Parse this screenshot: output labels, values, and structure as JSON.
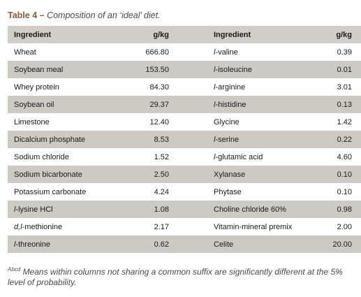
{
  "caption": {
    "label": "Table 4 –",
    "text": "Composition of an ‘ideal’ diet."
  },
  "table": {
    "headers": [
      "Ingredient",
      "g/kg",
      "Ingredient",
      "g/kg"
    ],
    "rows": [
      [
        "Wheat",
        "666.80",
        "l-valine",
        "0.39"
      ],
      [
        "Soybean meal",
        "153.50",
        "l-isoleucine",
        "0.01"
      ],
      [
        "Whey protein",
        "84.30",
        "l-arginine",
        "3.01"
      ],
      [
        "Soybean oil",
        "29.37",
        "l-histidine",
        "0.13"
      ],
      [
        "Limestone",
        "12.40",
        "Glycine",
        "1.42"
      ],
      [
        "Dicalcium phosphate",
        "8.53",
        "l-serine",
        "0.22"
      ],
      [
        "Sodium chloride",
        "1.52",
        "l-glutamic acid",
        "4.60"
      ],
      [
        "Sodium bicarbonate",
        "2.50",
        "Xylanase",
        "0.10"
      ],
      [
        "Potassium carbonate",
        "4.24",
        "Phytase",
        "0.10"
      ],
      [
        "l-lysine HCl",
        "1.08",
        "Choline chloride 60%",
        "0.98"
      ],
      [
        "d,l-methionine",
        "2.17",
        "Vitamin-mineral premix",
        "2.00"
      ],
      [
        "l-threonine",
        "0.62",
        "Celite",
        "20.00"
      ]
    ]
  },
  "footnote": {
    "superscript": "Abcd",
    "text": " Means within columns not sharing a common suffix are significantly different at the 5% level of probability."
  }
}
